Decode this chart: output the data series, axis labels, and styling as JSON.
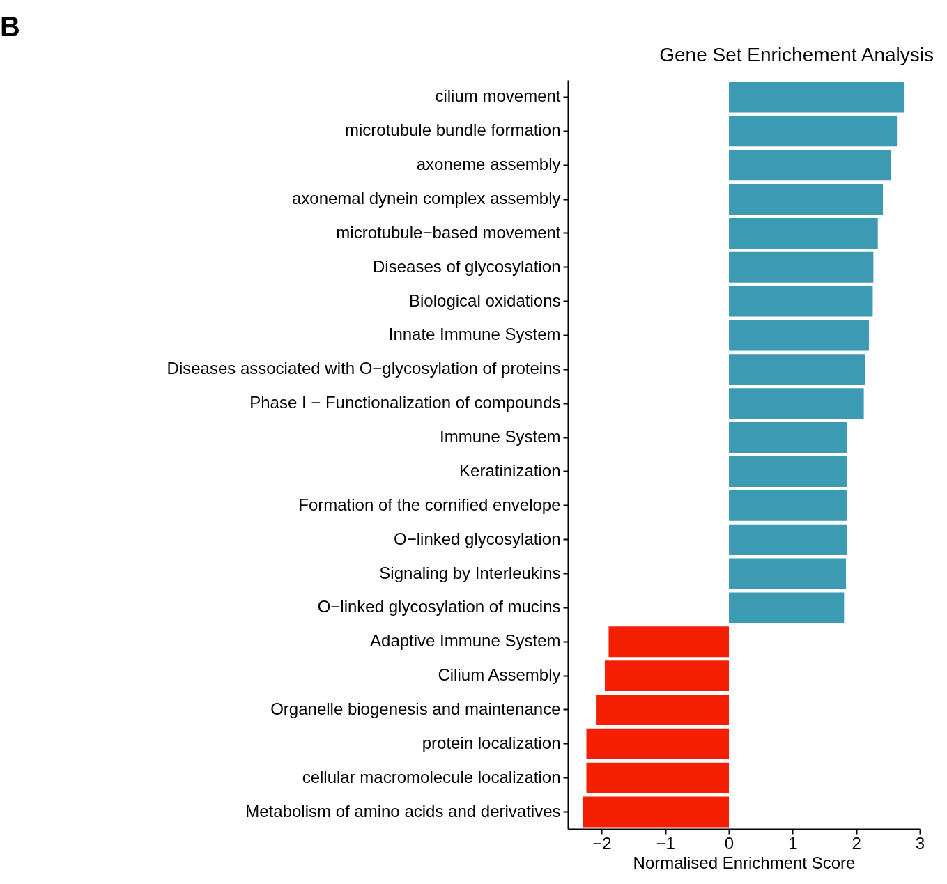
{
  "chart_data": {
    "type": "bar",
    "orientation": "horizontal",
    "title": "Gene Set Enrichement Analysis",
    "xlabel": "Normalised Enrichment Score",
    "annotations": [
      "B"
    ],
    "categories": [
      "cilium movement",
      "microtubule bundle formation",
      "axoneme assembly",
      "axonemal dynein complex assembly",
      "microtubule−based movement",
      "Diseases of glycosylation",
      "Biological oxidations",
      "Innate Immune System",
      "Diseases associated with O−glycosylation of proteins",
      "Phase I − Functionalization of compounds",
      "Immune System",
      "Keratinization",
      "Formation of the cornified envelope",
      "O−linked glycosylation",
      "Signaling by Interleukins",
      "O−linked glycosylation of mucins",
      "Adaptive Immune System",
      "Cilium Assembly",
      "Organelle biogenesis and maintenance",
      "protein localization",
      "cellular macromolecule localization",
      "Metabolism of amino acids and derivatives"
    ],
    "values": [
      2.76,
      2.64,
      2.54,
      2.42,
      2.34,
      2.27,
      2.26,
      2.2,
      2.14,
      2.12,
      1.85,
      1.85,
      1.85,
      1.85,
      1.84,
      1.81,
      -1.89,
      -1.95,
      -2.08,
      -2.24,
      -2.24,
      -2.29
    ],
    "colors": [
      "#3d9ab3",
      "#3d9ab3",
      "#3d9ab3",
      "#3d9ab3",
      "#3d9ab3",
      "#3d9ab3",
      "#3d9ab3",
      "#3d9ab3",
      "#3d9ab3",
      "#3d9ab3",
      "#3d9ab3",
      "#3d9ab3",
      "#3d9ab3",
      "#3d9ab3",
      "#3d9ab3",
      "#3d9ab3",
      "#f41e03",
      "#f41e03",
      "#f41e03",
      "#f41e03",
      "#f41e03",
      "#f41e03"
    ],
    "xlim": [
      -2.53,
      3
    ],
    "xticks": [
      {
        "value": -2,
        "label": "−2"
      },
      {
        "value": -1,
        "label": "−1"
      },
      0,
      1,
      2,
      3
    ],
    "grid": false
  }
}
